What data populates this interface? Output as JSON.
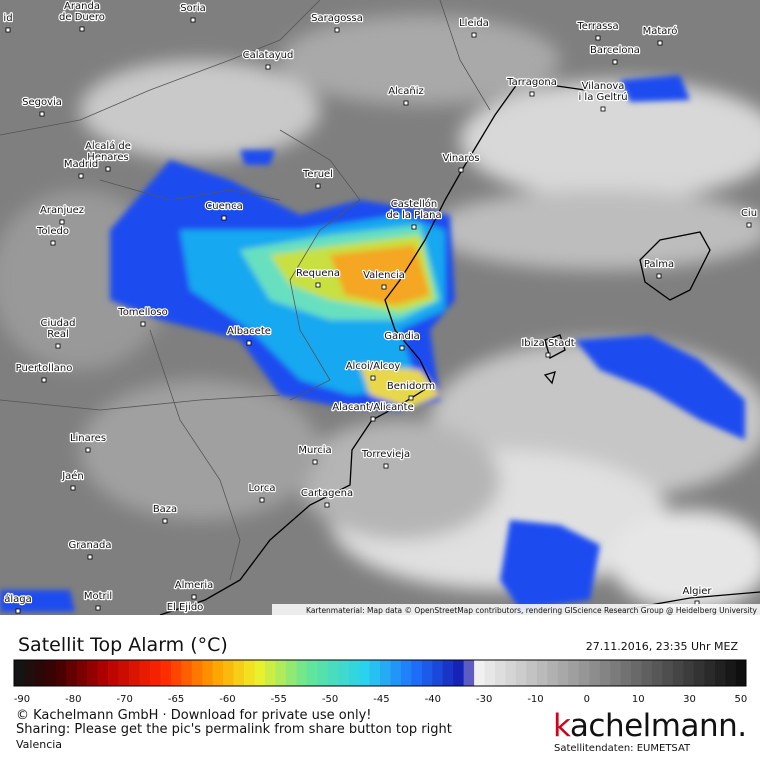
{
  "map": {
    "attribution": "Kartenmaterial: Map data © OpenStreetMap contributors, rendering GIScience Research Group @ Heidelberg University",
    "cities": [
      [
        "Aranda",
        "de Duero"
      ],
      [
        "Soria"
      ],
      [
        "Saragossa"
      ],
      [
        "Lleida"
      ],
      [
        "Terrassa"
      ],
      [
        "Mataró"
      ],
      [
        "Barcelona"
      ],
      [
        "Calatayud"
      ],
      [
        "Tarragona"
      ],
      [
        "Vilanova",
        "i la Geltrú"
      ],
      [
        "Segovia"
      ],
      [
        "Alcañiz"
      ],
      [
        "Alcalá de",
        "Henares"
      ],
      [
        "Madrid"
      ],
      [
        "Vinaròs"
      ],
      [
        "Teruel"
      ],
      [
        "Castellón",
        "de la Plana"
      ],
      [
        "Aranjuez"
      ],
      [
        "Cuenca"
      ],
      [
        "Toledo"
      ],
      [
        "Ciu"
      ],
      [
        "Palma"
      ],
      [
        "Requena"
      ],
      [
        "Valencia"
      ],
      [
        "Tomelloso"
      ],
      [
        "Ciudad",
        "Real"
      ],
      [
        "Albacete"
      ],
      [
        "Gandia"
      ],
      [
        "Ibiza Stadt"
      ],
      [
        "Puertollano"
      ],
      [
        "Alcoi/Alcoy"
      ],
      [
        "Benidorm"
      ],
      [
        "Alacant/Alicante"
      ],
      [
        "Linares"
      ],
      [
        "Murcia"
      ],
      [
        "Torrevieja"
      ],
      [
        "Jaén"
      ],
      [
        "Lorca"
      ],
      [
        "Cartagena"
      ],
      [
        "Baza"
      ],
      [
        "Granada"
      ],
      [
        "Almeria"
      ],
      [
        "Algier"
      ],
      [
        "álaga"
      ],
      [
        "Motril"
      ],
      [
        "El Ejido"
      ],
      [
        "id"
      ]
    ]
  },
  "legend": {
    "title": "Satellit Top Alarm (°C)",
    "timestamp": "27.11.2016, 23:35 Uhr MEZ",
    "ticks": [
      -90,
      -80,
      -70,
      -65,
      -60,
      -55,
      -50,
      -45,
      -40,
      -30,
      -10,
      0,
      10,
      30,
      50
    ]
  },
  "footer": {
    "copyright": "© Kachelmann GmbH · Download for private use only!",
    "sharing": "Sharing: Please get the pic's permalink from share button top right",
    "location": "Valencia",
    "logo": "kachelmann.",
    "source": "Satellitendaten: EUMETSAT"
  }
}
